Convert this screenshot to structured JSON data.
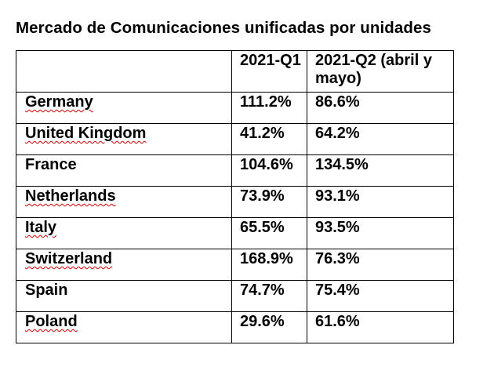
{
  "document": {
    "title": "Mercado de Comunicaciones unificadas por unidades"
  },
  "table": {
    "headers": [
      "",
      "2021-Q1",
      "2021-Q2 (abril y mayo)"
    ],
    "rows": [
      {
        "country": "Germany",
        "q1": "111.2%",
        "q2": "86.6%",
        "spellcheck_flag": true
      },
      {
        "country": "United Kingdom",
        "q1": "41.2%",
        "q2": "64.2%",
        "spellcheck_flag": true
      },
      {
        "country": "France",
        "q1": "104.6%",
        "q2": "134.5%",
        "spellcheck_flag": false
      },
      {
        "country": "Netherlands",
        "q1": "73.9%",
        "q2": "93.1%",
        "spellcheck_flag": true
      },
      {
        "country": "Italy",
        "q1": "65.5%",
        "q2": "93.5%",
        "spellcheck_flag": true
      },
      {
        "country": "Switzerland",
        "q1": "168.9%",
        "q2": "76.3%",
        "spellcheck_flag": true
      },
      {
        "country": "Spain",
        "q1": "74.7%",
        "q2": "75.4%",
        "spellcheck_flag": false
      },
      {
        "country": "Poland",
        "q1": "29.6%",
        "q2": "61.6%",
        "spellcheck_flag": true
      }
    ]
  },
  "colors": {
    "text": "#000000",
    "border": "#000000",
    "spellcheck_underline": "#d40000",
    "background": "#ffffff"
  }
}
